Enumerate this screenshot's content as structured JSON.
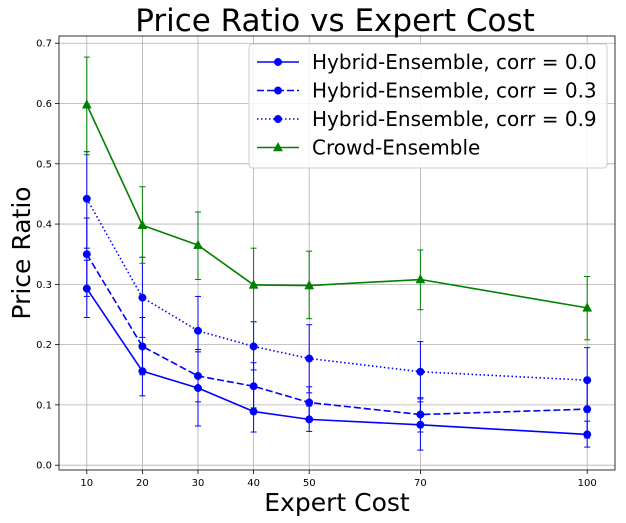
{
  "chart_data": {
    "type": "line",
    "title": "Price Ratio vs Expert Cost",
    "xlabel": "Expert Cost",
    "ylabel": "Price Ratio",
    "x": [
      10,
      20,
      30,
      40,
      50,
      70,
      100
    ],
    "xlim": [
      5,
      105
    ],
    "ylim": [
      -0.008,
      0.712
    ],
    "xticks": [
      "10",
      "20",
      "30",
      "40",
      "50",
      "70",
      "100"
    ],
    "yticks": [
      "0.0",
      "0.1",
      "0.2",
      "0.3",
      "0.4",
      "0.5",
      "0.6",
      "0.7"
    ],
    "grid": true,
    "legend_position": "top-right",
    "series": [
      {
        "name": "Hybrid-Ensemble, corr = 0.0",
        "color": "#0000ff",
        "line_style": "solid",
        "marker": "circle",
        "values": [
          0.293,
          0.156,
          0.128,
          0.089,
          0.076,
          0.067,
          0.051
        ],
        "err_low": [
          0.245,
          0.115,
          0.065,
          0.055,
          0.056,
          0.025,
          0.03
        ],
        "err_high": [
          0.34,
          0.2,
          0.188,
          0.127,
          0.098,
          0.11,
          0.073
        ]
      },
      {
        "name": "Hybrid-Ensemble, corr = 0.3",
        "color": "#0000ff",
        "line_style": "dashed",
        "marker": "circle",
        "values": [
          0.35,
          0.197,
          0.148,
          0.131,
          0.104,
          0.084,
          0.093
        ],
        "err_low": [
          0.28,
          0.15,
          0.105,
          0.095,
          0.078,
          0.055,
          0.045
        ],
        "err_high": [
          0.41,
          0.245,
          0.192,
          0.17,
          0.13,
          0.112,
          0.145
        ]
      },
      {
        "name": "Hybrid-Ensemble, corr = 0.9",
        "color": "#0000ff",
        "line_style": "dotted",
        "marker": "circle",
        "values": [
          0.442,
          0.278,
          0.223,
          0.197,
          0.177,
          0.155,
          0.141
        ],
        "err_low": [
          0.36,
          0.212,
          0.15,
          0.158,
          0.12,
          0.105,
          0.088
        ],
        "err_high": [
          0.52,
          0.345,
          0.28,
          0.238,
          0.233,
          0.205,
          0.195
        ]
      },
      {
        "name": "Crowd-Ensemble",
        "color": "#008000",
        "line_style": "solid",
        "marker": "triangle",
        "values": [
          0.598,
          0.398,
          0.365,
          0.299,
          0.298,
          0.308,
          0.261
        ],
        "err_low": [
          0.515,
          0.335,
          0.308,
          0.238,
          0.243,
          0.258,
          0.208
        ],
        "err_high": [
          0.677,
          0.462,
          0.42,
          0.36,
          0.355,
          0.357,
          0.313
        ]
      }
    ]
  }
}
